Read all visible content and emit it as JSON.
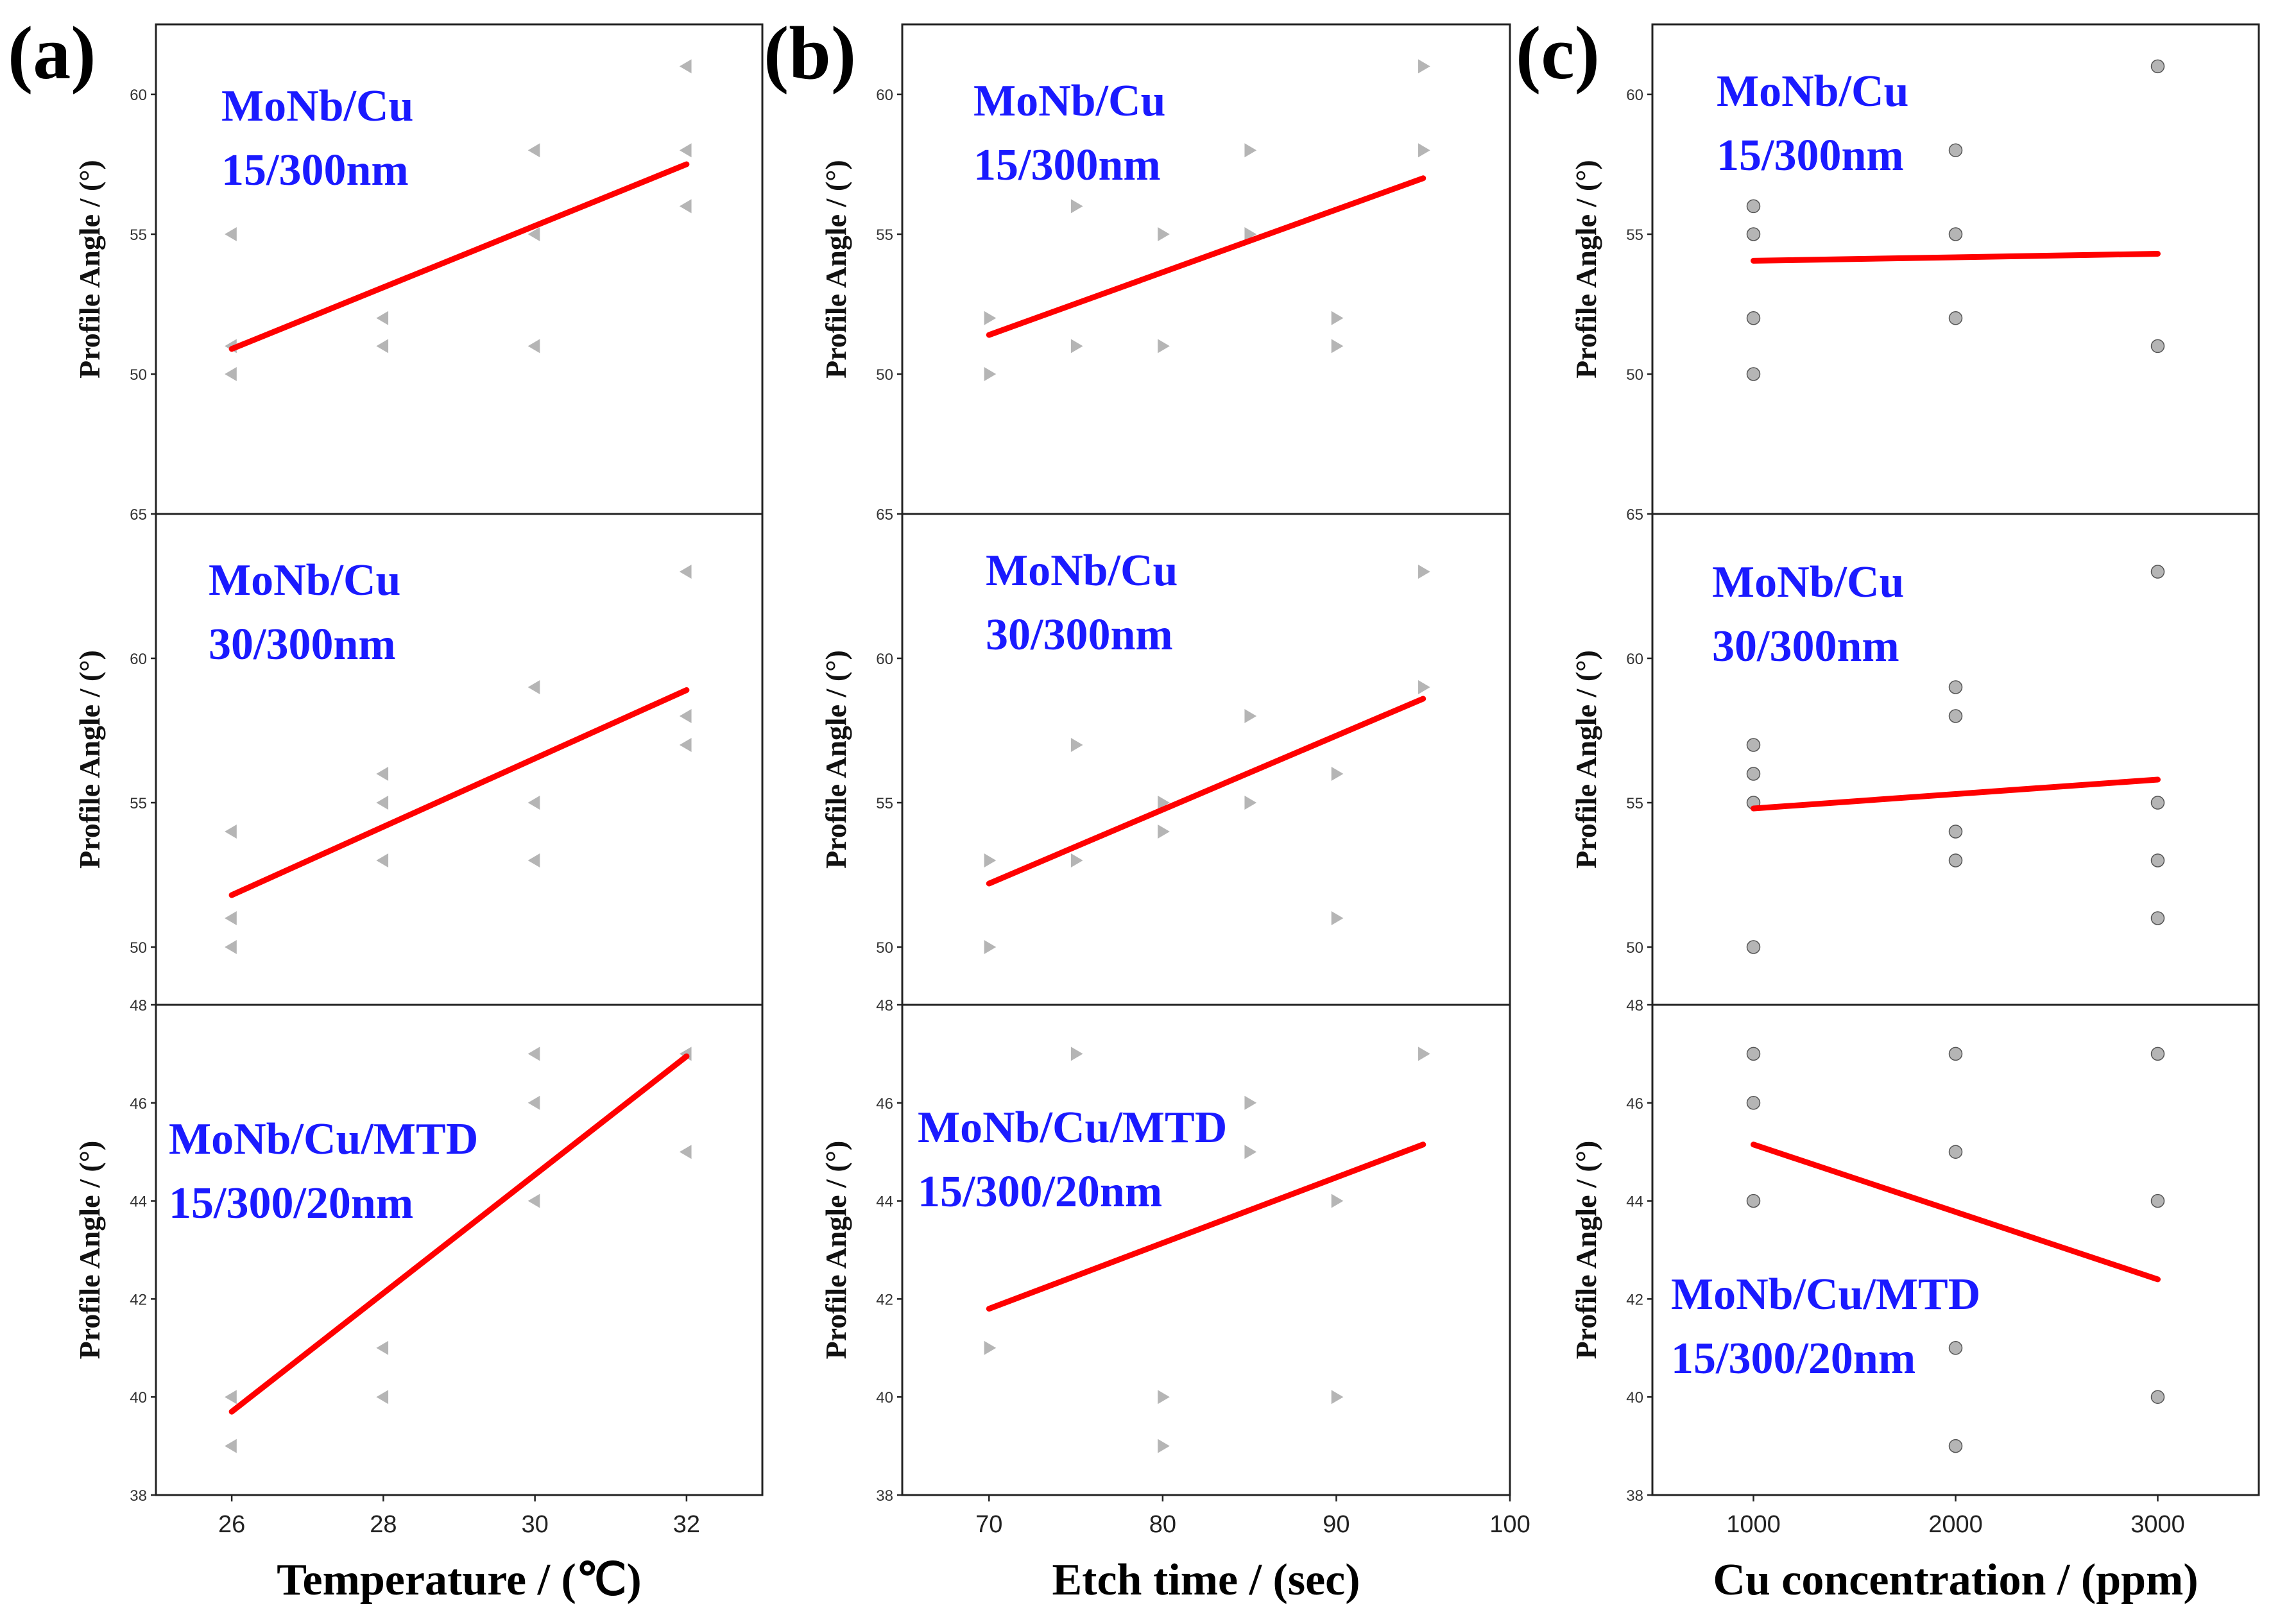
{
  "chart_data": [
    {
      "panel": "(a)",
      "type": "scatter",
      "xlabel": "Temperature / (℃)",
      "xlim": [
        25,
        33
      ],
      "xticks": [
        26,
        28,
        30,
        32
      ],
      "xtick_labels": [
        "26",
        "28",
        "30",
        "32"
      ],
      "rows": [
        {
          "title": "MoNb/Cu",
          "subtitle": "15/300nm",
          "ylabel": "Profile Angle / (°)",
          "ylim": [
            45,
            62.5
          ],
          "yticks": [
            50,
            55,
            60
          ],
          "ytick_labels": [
            "50",
            "55",
            "60"
          ],
          "marker": "tri-left",
          "points": [
            [
              26,
              55
            ],
            [
              26,
              51
            ],
            [
              26,
              50
            ],
            [
              28,
              52
            ],
            [
              28,
              51
            ],
            [
              30,
              58
            ],
            [
              30,
              55
            ],
            [
              30,
              51
            ],
            [
              32,
              61
            ],
            [
              32,
              58
            ],
            [
              32,
              56
            ]
          ],
          "fit": [
            [
              26,
              50.9
            ],
            [
              32,
              57.5
            ]
          ]
        },
        {
          "title": "MoNb/Cu",
          "subtitle": "30/300nm",
          "ylabel": "Profile Angle / (°)",
          "ylim": [
            48,
            65
          ],
          "yticks": [
            50,
            55,
            60,
            65
          ],
          "ytick_labels": [
            "50",
            "55",
            "60",
            "65"
          ],
          "marker": "tri-left",
          "points": [
            [
              26,
              54
            ],
            [
              26,
              51
            ],
            [
              26,
              50
            ],
            [
              28,
              56
            ],
            [
              28,
              55
            ],
            [
              28,
              53
            ],
            [
              30,
              59
            ],
            [
              30,
              55
            ],
            [
              30,
              53
            ],
            [
              32,
              63
            ],
            [
              32,
              58
            ],
            [
              32,
              57
            ]
          ],
          "fit": [
            [
              26,
              51.8
            ],
            [
              32,
              58.9
            ]
          ]
        },
        {
          "title": "MoNb/Cu/MTD",
          "subtitle": "15/300/20nm",
          "ylabel": "Profile Angle / (°)",
          "ylim": [
            38,
            48
          ],
          "yticks": [
            38,
            40,
            42,
            44,
            46,
            48
          ],
          "ytick_labels": [
            "38",
            "40",
            "42",
            "44",
            "46",
            "48"
          ],
          "marker": "tri-left",
          "points": [
            [
              26,
              40
            ],
            [
              26,
              39
            ],
            [
              28,
              41
            ],
            [
              28,
              40
            ],
            [
              30,
              47
            ],
            [
              30,
              46
            ],
            [
              30,
              44
            ],
            [
              32,
              47
            ],
            [
              32,
              45
            ]
          ],
          "fit": [
            [
              26,
              39.7
            ],
            [
              32,
              46.95
            ]
          ]
        }
      ]
    },
    {
      "panel": "(b)",
      "type": "scatter",
      "xlabel": "Etch time / (sec)",
      "xlim": [
        65,
        100
      ],
      "xticks": [
        70,
        80,
        90,
        100
      ],
      "xtick_labels": [
        "70",
        "80",
        "90",
        "100"
      ],
      "rows": [
        {
          "title": "MoNb/Cu",
          "subtitle": "15/300nm",
          "ylabel": "Profile Angle / (°)",
          "ylim": [
            45,
            62.5
          ],
          "yticks": [
            50,
            55,
            60
          ],
          "ytick_labels": [
            "50",
            "55",
            "60"
          ],
          "marker": "tri-right",
          "points": [
            [
              70,
              52
            ],
            [
              70,
              50
            ],
            [
              75,
              56
            ],
            [
              75,
              51
            ],
            [
              80,
              55
            ],
            [
              80,
              51
            ],
            [
              85,
              58
            ],
            [
              85,
              55
            ],
            [
              90,
              52
            ],
            [
              90,
              51
            ],
            [
              95,
              61
            ],
            [
              95,
              58
            ]
          ],
          "fit": [
            [
              70,
              51.4
            ],
            [
              95,
              57
            ]
          ]
        },
        {
          "title": "MoNb/Cu",
          "subtitle": "30/300nm",
          "ylabel": "Profile Angle / (°)",
          "ylim": [
            48,
            65
          ],
          "yticks": [
            50,
            55,
            60,
            65
          ],
          "ytick_labels": [
            "50",
            "55",
            "60",
            "65"
          ],
          "marker": "tri-right",
          "points": [
            [
              70,
              53
            ],
            [
              70,
              50
            ],
            [
              75,
              57
            ],
            [
              75,
              53
            ],
            [
              80,
              55
            ],
            [
              80,
              54
            ],
            [
              85,
              58
            ],
            [
              85,
              55
            ],
            [
              90,
              56
            ],
            [
              90,
              51
            ],
            [
              95,
              63
            ],
            [
              95,
              59
            ]
          ],
          "fit": [
            [
              70,
              52.2
            ],
            [
              95,
              58.6
            ]
          ]
        },
        {
          "title": "MoNb/Cu/MTD",
          "subtitle": "15/300/20nm",
          "ylabel": "Profile Angle / (°)",
          "ylim": [
            38,
            48
          ],
          "yticks": [
            38,
            40,
            42,
            44,
            46,
            48
          ],
          "ytick_labels": [
            "38",
            "40",
            "42",
            "44",
            "46",
            "48"
          ],
          "marker": "tri-right",
          "points": [
            [
              70,
              41
            ],
            [
              75,
              47
            ],
            [
              80,
              40
            ],
            [
              80,
              39
            ],
            [
              85,
              46
            ],
            [
              85,
              45
            ],
            [
              90,
              44
            ],
            [
              90,
              40
            ],
            [
              95,
              47
            ]
          ],
          "fit": [
            [
              70,
              41.8
            ],
            [
              95,
              45.15
            ]
          ]
        }
      ]
    },
    {
      "panel": "(c)",
      "type": "scatter",
      "xlabel": "Cu concentration / (ppm)",
      "xlim": [
        500,
        3500
      ],
      "xticks": [
        1000,
        2000,
        3000
      ],
      "xtick_labels": [
        "1000",
        "2000",
        "3000"
      ],
      "rows": [
        {
          "title": "MoNb/Cu",
          "subtitle": "15/300nm",
          "ylabel": "Profile Angle / (°)",
          "ylim": [
            45,
            62.5
          ],
          "yticks": [
            50,
            55,
            60
          ],
          "ytick_labels": [
            "50",
            "55",
            "60"
          ],
          "marker": "circle",
          "points": [
            [
              1000,
              56
            ],
            [
              1000,
              55
            ],
            [
              1000,
              52
            ],
            [
              1000,
              50
            ],
            [
              2000,
              58
            ],
            [
              2000,
              55
            ],
            [
              2000,
              52
            ],
            [
              3000,
              61
            ],
            [
              3000,
              51
            ]
          ],
          "fit": [
            [
              1000,
              54.05
            ],
            [
              3000,
              54.3
            ]
          ]
        },
        {
          "title": "MoNb/Cu",
          "subtitle": "30/300nm",
          "ylabel": "Profile Angle / (°)",
          "ylim": [
            48,
            65
          ],
          "yticks": [
            50,
            55,
            60,
            65
          ],
          "ytick_labels": [
            "50",
            "55",
            "60",
            "65"
          ],
          "marker": "circle",
          "points": [
            [
              1000,
              57
            ],
            [
              1000,
              56
            ],
            [
              1000,
              55
            ],
            [
              1000,
              50
            ],
            [
              2000,
              59
            ],
            [
              2000,
              58
            ],
            [
              2000,
              54
            ],
            [
              2000,
              53
            ],
            [
              3000,
              63
            ],
            [
              3000,
              55
            ],
            [
              3000,
              53
            ],
            [
              3000,
              51
            ]
          ],
          "fit": [
            [
              1000,
              54.8
            ],
            [
              3000,
              55.8
            ]
          ]
        },
        {
          "title": "MoNb/Cu/MTD",
          "subtitle": "15/300/20nm",
          "ylabel": "Profile Angle / (°)",
          "ylim": [
            38,
            48
          ],
          "yticks": [
            38,
            40,
            42,
            44,
            46,
            48
          ],
          "ytick_labels": [
            "38",
            "40",
            "42",
            "44",
            "46",
            "48"
          ],
          "marker": "circle",
          "points": [
            [
              1000,
              47
            ],
            [
              1000,
              46
            ],
            [
              1000,
              44
            ],
            [
              2000,
              47
            ],
            [
              2000,
              45
            ],
            [
              2000,
              41
            ],
            [
              2000,
              39
            ],
            [
              3000,
              47
            ],
            [
              3000,
              44
            ],
            [
              3000,
              40
            ]
          ],
          "fit": [
            [
              1000,
              45.15
            ],
            [
              3000,
              42.4
            ]
          ]
        }
      ]
    }
  ]
}
